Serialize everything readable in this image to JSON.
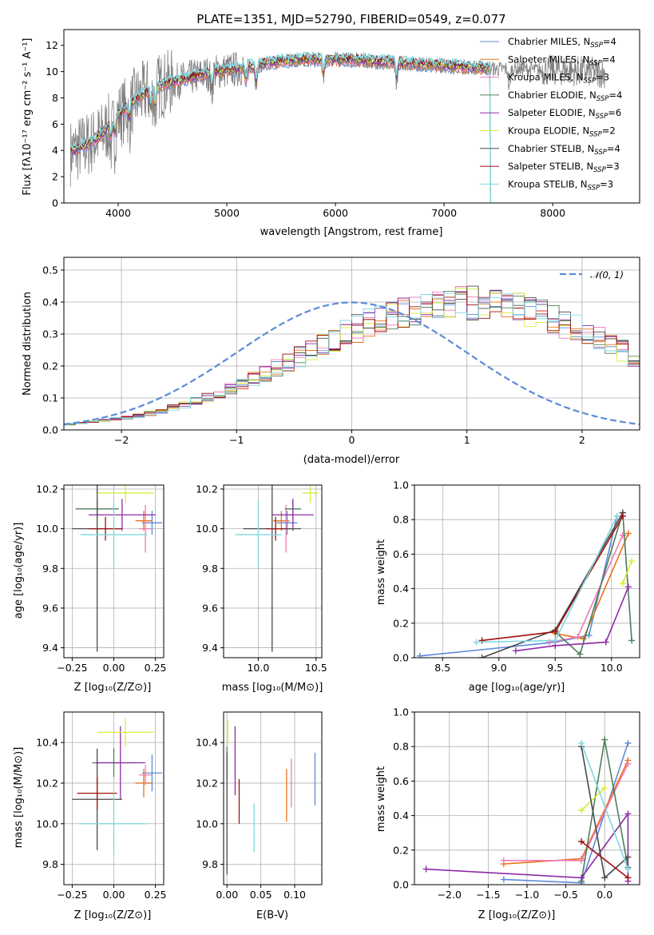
{
  "colors": {
    "Chabrier MILES": "#5b8bd8",
    "Salpeter MILES": "#e8731c",
    "Kroupa MILES": "#f07ab8",
    "Chabrier ELODIE": "#4e7d5a",
    "Salpeter ELODIE": "#8e2ba7",
    "Kroupa ELODIE": "#d8ec3c",
    "Chabrier STELIB": "#4a4a4a",
    "Salpeter STELIB": "#a01010",
    "Kroupa STELIB": "#7fd7e0",
    "spectrum": "#808080",
    "normal": "#5b8bd8"
  },
  "chart_data": [
    {
      "id": "spectrum",
      "type": "line",
      "title": "PLATE=1351, MJD=52790, FIBERID=0549, z=0.077",
      "xlabel": "wavelength [Angstrom, rest frame]",
      "ylabel": "Flux [fλ10⁻¹⁷ erg cm⁻² s⁻¹ A⁻¹]",
      "xlim": [
        3500,
        8800
      ],
      "ylim": [
        0,
        13.2
      ],
      "xticks": [
        "4000",
        "5000",
        "6000",
        "7000",
        "8000"
      ],
      "yticks": [
        "0",
        "2",
        "4",
        "6",
        "8",
        "10",
        "12"
      ],
      "legend": "top-right",
      "legend_entries": [
        {
          "series": "Chabrier MILES",
          "label": "Chabrier MILES, N",
          "sub": "SSP",
          "tail": "=4"
        },
        {
          "series": "Salpeter MILES",
          "label": "Salpeter MILES, N",
          "sub": "SSP",
          "tail": "=4"
        },
        {
          "series": "Kroupa MILES",
          "label": "Kroupa MILES, N",
          "sub": "SSP",
          "tail": "=3"
        },
        {
          "series": "Chabrier ELODIE",
          "label": "Chabrier ELODIE, N",
          "sub": "SSP",
          "tail": "=4"
        },
        {
          "series": "Salpeter ELODIE",
          "label": "Salpeter ELODIE, N",
          "sub": "SSP",
          "tail": "=6"
        },
        {
          "series": "Kroupa ELODIE",
          "label": "Kroupa ELODIE, N",
          "sub": "SSP",
          "tail": "=2"
        },
        {
          "series": "Chabrier STELIB",
          "label": "Chabrier STELIB, N",
          "sub": "SSP",
          "tail": "=4"
        },
        {
          "series": "Salpeter STELIB",
          "label": "Salpeter STELIB, N",
          "sub": "SSP",
          "tail": "=3"
        },
        {
          "series": "Kroupa STELIB",
          "label": "Kroupa STELIB, N",
          "sub": "SSP",
          "tail": "=3"
        }
      ],
      "continuum_x": [
        3550,
        3650,
        3750,
        3850,
        3950,
        4050,
        4150,
        4250,
        4350,
        4500,
        4700,
        4900,
        5100,
        5300,
        5500,
        5700,
        5900,
        6100,
        6300,
        6500,
        6700,
        6900,
        7100,
        7300,
        7500,
        7700,
        7900,
        8100,
        8300,
        8500
      ],
      "continuum_y": [
        3.8,
        4.2,
        4.6,
        5.2,
        6.2,
        7.0,
        7.8,
        8.4,
        8.8,
        9.2,
        9.6,
        10.0,
        10.2,
        10.5,
        10.8,
        10.9,
        10.9,
        10.9,
        10.8,
        10.7,
        10.6,
        10.5,
        10.4,
        10.3,
        10.2,
        10.2,
        10.1,
        10.1,
        10.0,
        9.9
      ]
    },
    {
      "id": "residuals",
      "type": "step",
      "xlabel": "(data-model)/error",
      "ylabel": "Normed distribution",
      "xlim": [
        -2.5,
        2.5
      ],
      "ylim": [
        0,
        0.54
      ],
      "xticks": [
        "−2",
        "−1",
        "0",
        "1",
        "2"
      ],
      "yticks": [
        "0.0",
        "0.1",
        "0.2",
        "0.3",
        "0.4",
        "0.5"
      ],
      "legend": "top-right",
      "legend_label": "𝒩(0, 1)",
      "bin_width": 0.1,
      "bin_start": -2.5,
      "base": [
        0.018,
        0.022,
        0.025,
        0.029,
        0.034,
        0.039,
        0.045,
        0.052,
        0.06,
        0.069,
        0.079,
        0.09,
        0.102,
        0.115,
        0.129,
        0.144,
        0.16,
        0.176,
        0.193,
        0.211,
        0.229,
        0.248,
        0.266,
        0.284,
        0.301,
        0.318,
        0.333,
        0.347,
        0.36,
        0.37,
        0.379,
        0.386,
        0.392,
        0.395,
        0.397,
        0.397,
        0.395,
        0.392,
        0.386,
        0.379,
        0.37,
        0.36,
        0.347,
        0.333,
        0.318,
        0.301,
        0.284,
        0.266,
        0.248,
        0.229
      ]
    },
    {
      "id": "age-vs-z",
      "type": "errorbar",
      "xlabel": "Z [log₁₀(Z/Z⊙)]",
      "ylabel": "age  [log₁₀(age/yr)]",
      "xlim": [
        -0.3,
        0.3
      ],
      "ylim": [
        9.35,
        10.22
      ],
      "xticks": [
        "−0.25",
        "0.00",
        "0.25"
      ],
      "yticks": [
        "9.4",
        "9.6",
        "9.8",
        "10.0",
        "10.2"
      ],
      "points": [
        {
          "series": "Chabrier MILES",
          "x": 0.23,
          "xe": 0.06,
          "y": 10.03,
          "ye": 0.06
        },
        {
          "series": "Salpeter MILES",
          "x": 0.18,
          "xe": 0.05,
          "y": 10.04,
          "ye": 0.05
        },
        {
          "series": "Kroupa MILES",
          "x": 0.19,
          "xe": 0.04,
          "y": 10.0,
          "ye": 0.12
        },
        {
          "series": "Chabrier ELODIE",
          "x": -0.1,
          "xe": 0.13,
          "y": 10.1,
          "ye": 0.05
        },
        {
          "series": "Salpeter ELODIE",
          "x": 0.05,
          "xe": 0.2,
          "y": 10.07,
          "ye": 0.08
        },
        {
          "series": "Kroupa ELODIE",
          "x": 0.07,
          "xe": 0.17,
          "y": 10.18,
          "ye": 0.05
        },
        {
          "series": "Chabrier STELIB",
          "x": -0.1,
          "xe": 0.15,
          "y": 10.0,
          "ye": 0.62
        },
        {
          "series": "Salpeter STELIB",
          "x": -0.05,
          "xe": 0.1,
          "y": 10.0,
          "ye": 0.06
        },
        {
          "series": "Kroupa STELIB",
          "x": 0.0,
          "xe": 0.2,
          "y": 9.97,
          "ye": 0.17
        }
      ]
    },
    {
      "id": "age-vs-mass",
      "type": "errorbar",
      "xlabel": "mass [log₁₀(M/M⊙)]",
      "ylabel": "",
      "xlim": [
        9.7,
        10.55
      ],
      "ylim": [
        9.35,
        10.22
      ],
      "xticks": [
        "10.0",
        "10.5"
      ],
      "yticks": [
        "9.4",
        "9.6",
        "9.8",
        "10.0",
        "10.2"
      ],
      "points": [
        {
          "series": "Chabrier MILES",
          "x": 10.25,
          "xe": 0.09,
          "y": 10.03,
          "ye": 0.06
        },
        {
          "series": "Salpeter MILES",
          "x": 10.2,
          "xe": 0.07,
          "y": 10.04,
          "ye": 0.05
        },
        {
          "series": "Kroupa MILES",
          "x": 10.24,
          "xe": 0.05,
          "y": 10.0,
          "ye": 0.12
        },
        {
          "series": "Chabrier ELODIE",
          "x": 10.3,
          "xe": 0.07,
          "y": 10.1,
          "ye": 0.05
        },
        {
          "series": "Salpeter ELODIE",
          "x": 10.3,
          "xe": 0.18,
          "y": 10.07,
          "ye": 0.08
        },
        {
          "series": "Kroupa ELODIE",
          "x": 10.45,
          "xe": 0.07,
          "y": 10.18,
          "ye": 0.05
        },
        {
          "series": "Chabrier STELIB",
          "x": 10.12,
          "xe": 0.25,
          "y": 10.0,
          "ye": 0.62
        },
        {
          "series": "Salpeter STELIB",
          "x": 10.15,
          "xe": 0.08,
          "y": 10.0,
          "ye": 0.06
        },
        {
          "series": "Kroupa STELIB",
          "x": 10.0,
          "xe": 0.2,
          "y": 9.97,
          "ye": 0.17
        }
      ]
    },
    {
      "id": "weight-vs-age",
      "type": "line",
      "xlabel": "age  [log₁₀(age/yr)]",
      "ylabel": "mass weight",
      "xlim": [
        8.25,
        10.25
      ],
      "ylim": [
        0,
        1.0
      ],
      "xticks": [
        "8.5",
        "9.0",
        "9.5",
        "10.0"
      ],
      "yticks": [
        "0.0",
        "0.2",
        "0.4",
        "0.6",
        "0.8",
        "1.0"
      ],
      "series": [
        {
          "name": "Chabrier MILES",
          "x": [
            8.3,
            9.5,
            9.8,
            10.05
          ],
          "y": [
            0.01,
            0.09,
            0.13,
            0.82
          ]
        },
        {
          "name": "Salpeter MILES",
          "x": [
            9.5,
            9.75,
            10.15
          ],
          "y": [
            0.14,
            0.11,
            0.72
          ]
        },
        {
          "name": "Kroupa MILES",
          "x": [
            9.45,
            9.7,
            10.1
          ],
          "y": [
            0.09,
            0.12,
            0.71
          ]
        },
        {
          "name": "Chabrier ELODIE",
          "x": [
            9.5,
            9.72,
            10.1,
            10.18
          ],
          "y": [
            0.15,
            0.02,
            0.84,
            0.1
          ]
        },
        {
          "name": "Salpeter ELODIE",
          "x": [
            9.15,
            9.5,
            9.95,
            10.15
          ],
          "y": [
            0.04,
            0.07,
            0.09,
            0.41
          ]
        },
        {
          "name": "Kroupa ELODIE",
          "x": [
            10.1,
            10.18
          ],
          "y": [
            0.43,
            0.56
          ]
        },
        {
          "name": "Chabrier STELIB",
          "x": [
            8.85,
            9.5,
            10.1
          ],
          "y": [
            0.0,
            0.16,
            0.84
          ]
        },
        {
          "name": "Salpeter STELIB",
          "x": [
            8.85,
            9.5,
            10.1
          ],
          "y": [
            0.1,
            0.15,
            0.82
          ]
        },
        {
          "name": "Kroupa STELIB",
          "x": [
            8.8,
            9.5,
            10.05
          ],
          "y": [
            0.09,
            0.1,
            0.82
          ]
        }
      ]
    },
    {
      "id": "mass-vs-z",
      "type": "errorbar",
      "xlabel": "Z [log₁₀(Z/Z⊙)]",
      "ylabel": "mass [log₁₀(M/M⊙)]",
      "xlim": [
        -0.3,
        0.3
      ],
      "ylim": [
        9.7,
        10.55
      ],
      "xticks": [
        "−0.25",
        "0.00",
        "0.25"
      ],
      "yticks": [
        "9.8",
        "10.0",
        "10.2",
        "10.4"
      ],
      "points": [
        {
          "series": "Chabrier MILES",
          "x": 0.23,
          "xe": 0.06,
          "y": 10.25,
          "ye": 0.09
        },
        {
          "series": "Salpeter MILES",
          "x": 0.18,
          "xe": 0.05,
          "y": 10.2,
          "ye": 0.07
        },
        {
          "series": "Kroupa MILES",
          "x": 0.19,
          "xe": 0.04,
          "y": 10.24,
          "ye": 0.05
        },
        {
          "series": "Chabrier ELODIE",
          "x": 0.0,
          "xe": 0.13,
          "y": 10.3,
          "ye": 0.07
        },
        {
          "series": "Salpeter ELODIE",
          "x": 0.04,
          "xe": 0.15,
          "y": 10.3,
          "ye": 0.18
        },
        {
          "series": "Kroupa ELODIE",
          "x": 0.07,
          "xe": 0.17,
          "y": 10.45,
          "ye": 0.07
        },
        {
          "series": "Chabrier STELIB",
          "x": -0.1,
          "xe": 0.15,
          "y": 10.12,
          "ye": 0.25
        },
        {
          "series": "Salpeter STELIB",
          "x": -0.1,
          "xe": 0.12,
          "y": 10.15,
          "ye": 0.08
        },
        {
          "series": "Kroupa STELIB",
          "x": 0.0,
          "xe": 0.2,
          "y": 10.0,
          "ye": 0.15
        }
      ]
    },
    {
      "id": "mass-vs-ebv",
      "type": "errorbar",
      "xlabel": "E(B-V)",
      "ylabel": "",
      "xlim": [
        -0.005,
        0.14
      ],
      "ylim": [
        9.7,
        10.55
      ],
      "xticks": [
        "0.00",
        "0.05",
        "0.10"
      ],
      "yticks": [
        "9.8",
        "10.0",
        "10.2",
        "10.4"
      ],
      "points": [
        {
          "series": "Chabrier MILES",
          "x": 0.13,
          "xe": 0.0,
          "y": 10.22,
          "ye": 0.13
        },
        {
          "series": "Salpeter MILES",
          "x": 0.088,
          "xe": 0.0,
          "y": 10.14,
          "ye": 0.13
        },
        {
          "series": "Kroupa MILES",
          "x": 0.095,
          "xe": 0.0,
          "y": 10.2,
          "ye": 0.12
        },
        {
          "series": "Chabrier ELODIE",
          "x": 0.0,
          "xe": 0.0,
          "y": 10.3,
          "ye": 0.08
        },
        {
          "series": "Salpeter ELODIE",
          "x": 0.012,
          "xe": 0.0,
          "y": 10.31,
          "ye": 0.17
        },
        {
          "series": "Kroupa ELODIE",
          "x": 0.001,
          "xe": 0.0,
          "y": 10.45,
          "ye": 0.06
        },
        {
          "series": "Chabrier STELIB",
          "x": 0.0,
          "xe": 0.0,
          "y": 10.05,
          "ye": 0.3
        },
        {
          "series": "Salpeter STELIB",
          "x": 0.018,
          "xe": 0.0,
          "y": 10.11,
          "ye": 0.11
        },
        {
          "series": "Kroupa STELIB",
          "x": 0.04,
          "xe": 0.0,
          "y": 9.98,
          "ye": 0.12
        }
      ]
    },
    {
      "id": "weight-vs-z",
      "type": "line",
      "xlabel": "Z [log₁₀(Z/Z⊙)]",
      "ylabel": "mass weight",
      "xlim": [
        -2.45,
        0.45
      ],
      "ylim": [
        0,
        1.0
      ],
      "xticks": [
        "−2.0",
        "−1.5",
        "−1.0",
        "−0.5",
        "0.0"
      ],
      "yticks": [
        "0.0",
        "0.2",
        "0.4",
        "0.6",
        "0.8",
        "1.0"
      ],
      "series": [
        {
          "name": "Chabrier MILES",
          "x": [
            -1.3,
            -0.3,
            0.3
          ],
          "y": [
            0.03,
            0.01,
            0.82
          ]
        },
        {
          "name": "Salpeter MILES",
          "x": [
            -1.3,
            -0.3,
            0.3
          ],
          "y": [
            0.12,
            0.15,
            0.72
          ]
        },
        {
          "name": "Kroupa MILES",
          "x": [
            -1.3,
            -0.3,
            0.3
          ],
          "y": [
            0.14,
            0.14,
            0.7
          ]
        },
        {
          "name": "Chabrier ELODIE",
          "x": [
            -0.3,
            0.0,
            0.3
          ],
          "y": [
            0.02,
            0.84,
            0.1
          ]
        },
        {
          "name": "Salpeter ELODIE",
          "x": [
            -2.3,
            -0.3,
            0.3,
            0.3
          ],
          "y": [
            0.09,
            0.04,
            0.41,
            0.02
          ]
        },
        {
          "name": "Kroupa ELODIE",
          "x": [
            -0.3,
            0.0
          ],
          "y": [
            0.43,
            0.56
          ]
        },
        {
          "name": "Chabrier STELIB",
          "x": [
            -0.3,
            0.0,
            0.3
          ],
          "y": [
            0.8,
            0.04,
            0.16
          ]
        },
        {
          "name": "Salpeter STELIB",
          "x": [
            -0.3,
            0.3
          ],
          "y": [
            0.25,
            0.04
          ]
        },
        {
          "name": "Kroupa STELIB",
          "x": [
            -0.3,
            0.3
          ],
          "y": [
            0.82,
            0.09
          ]
        }
      ]
    }
  ]
}
